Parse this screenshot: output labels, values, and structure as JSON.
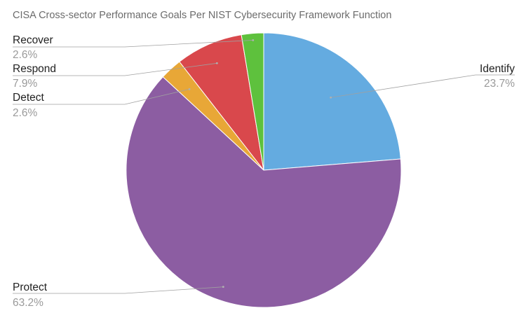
{
  "chart_data": {
    "type": "pie",
    "title": "CISA Cross-sector Performance Goals Per NIST Cybersecurity Framework Function",
    "start_angle_deg": 0,
    "direction": "clockwise",
    "slices": [
      {
        "label": "Identify",
        "value": 23.7,
        "display": "23.7%",
        "color": "#64abe0"
      },
      {
        "label": "Protect",
        "value": 63.2,
        "display": "63.2%",
        "color": "#8c5da2"
      },
      {
        "label": "Detect",
        "value": 2.6,
        "display": "2.6%",
        "color": "#e8a737"
      },
      {
        "label": "Respond",
        "value": 7.9,
        "display": "7.9%",
        "color": "#d9484c"
      },
      {
        "label": "Recover",
        "value": 2.6,
        "display": "2.6%",
        "color": "#5ec13d"
      }
    ]
  }
}
